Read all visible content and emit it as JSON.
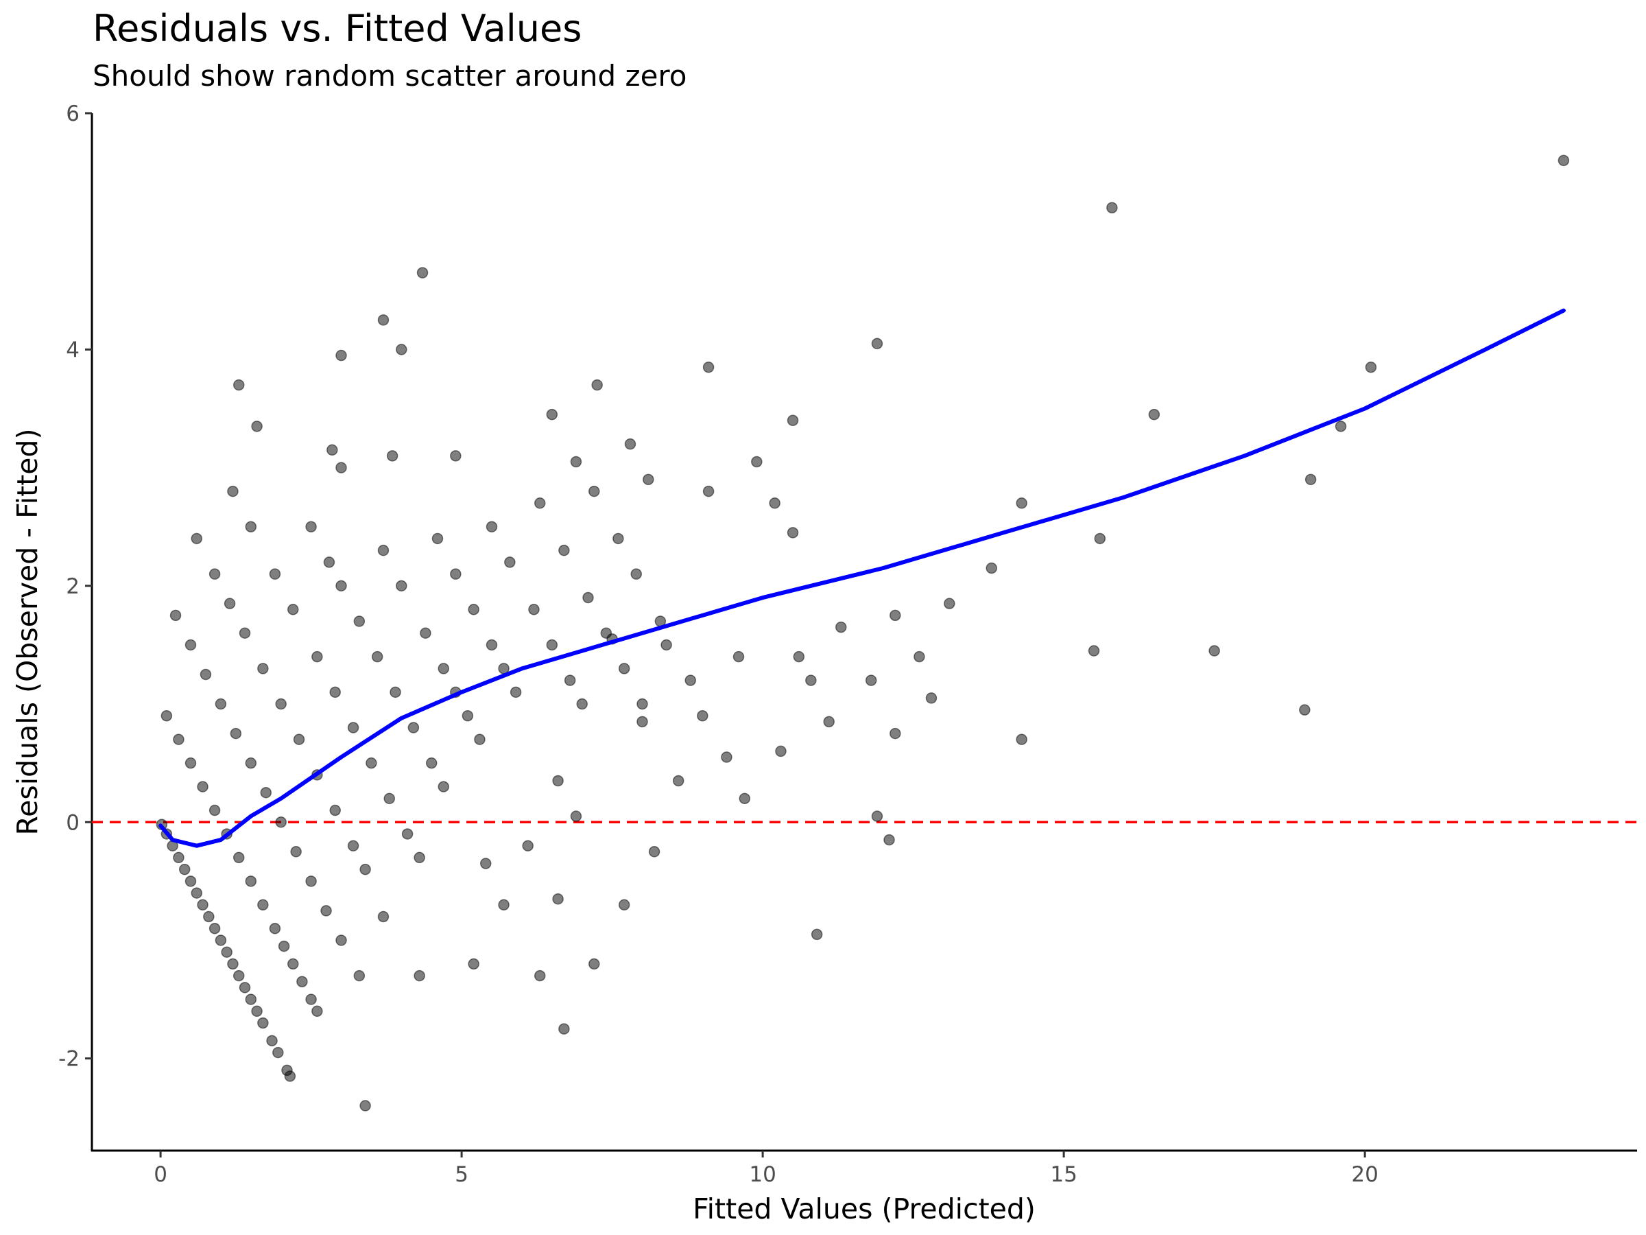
{
  "chart_data": {
    "type": "scatter",
    "title": "Residuals vs. Fitted Values",
    "subtitle": "Should show random scatter around zero",
    "x_label": "Fitted Values (Predicted)",
    "y_label": "Residuals (Observed - Fitted)",
    "xlim": [
      -1.14,
      24.52
    ],
    "ylim": [
      -2.78,
      6
    ],
    "xticks": [
      0,
      5,
      10,
      15,
      20
    ],
    "yticks": [
      -2,
      0,
      2,
      4,
      6
    ],
    "grid": false,
    "hline": {
      "value": 0,
      "color": "#ff0000"
    },
    "series": [
      {
        "type": "scatter",
        "color": "#000000",
        "opacity": 0.5,
        "x": [
          0.02,
          0.1,
          0.2,
          0.3,
          0.4,
          0.5,
          0.6,
          0.7,
          0.8,
          0.9,
          1.0,
          1.1,
          1.2,
          1.3,
          1.4,
          1.5,
          1.6,
          1.7,
          1.85,
          1.95,
          2.1,
          2.15,
          0.1,
          0.3,
          0.5,
          0.7,
          0.9,
          1.1,
          1.3,
          1.5,
          1.7,
          1.9,
          2.05,
          2.2,
          2.35,
          2.5,
          2.6,
          0.25,
          0.5,
          0.75,
          1.0,
          1.25,
          1.5,
          1.75,
          2.0,
          2.25,
          2.5,
          2.75,
          3.0,
          3.3,
          0.6,
          0.9,
          1.15,
          1.4,
          1.7,
          2.0,
          2.3,
          2.6,
          2.9,
          3.2,
          3.4,
          1.2,
          1.5,
          1.9,
          2.2,
          2.6,
          2.9,
          3.2,
          3.5,
          3.8,
          4.1,
          4.3,
          2.5,
          2.8,
          3.0,
          3.3,
          3.6,
          3.9,
          4.2,
          4.5,
          4.7,
          3.7,
          4.0,
          4.4,
          4.7,
          4.9,
          5.1,
          5.3,
          4.6,
          4.9,
          5.2,
          5.5,
          5.7,
          5.9,
          5.5,
          5.8,
          6.2,
          6.5,
          6.8,
          7.0,
          6.3,
          6.7,
          7.1,
          7.4,
          7.7,
          8.0,
          7.2,
          7.6,
          7.9,
          8.3,
          8.8,
          1.3,
          1.6,
          3.0,
          3.7,
          4.0,
          4.35,
          2.85,
          3.0,
          3.85,
          4.9,
          6.5,
          7.25,
          9.1,
          10.5,
          11.9,
          15.8,
          23.3,
          20.1,
          16.5,
          19.6,
          19.1,
          14.3,
          15.6,
          13.8,
          13.1,
          12.2,
          11.3,
          15.5,
          17.5,
          19.0,
          14.3,
          12.2,
          12.8,
          11.8,
          12.6,
          10.2,
          10.5,
          9.9,
          9.1,
          8.1,
          7.8,
          6.9,
          8.0,
          8.6,
          9.4,
          10.3,
          9.7,
          11.1,
          11.9,
          12.1,
          10.9,
          7.7,
          6.6,
          5.7,
          5.2,
          4.3,
          3.4,
          6.3,
          6.7,
          7.2,
          3.7,
          5.4,
          6.1,
          8.2,
          6.9,
          6.6,
          9.0,
          9.6,
          10.6,
          10.8,
          8.4,
          7.5
        ],
        "values": [
          -0.02,
          -0.1,
          -0.2,
          -0.3,
          -0.4,
          -0.5,
          -0.6,
          -0.7,
          -0.8,
          -0.9,
          -1.0,
          -1.1,
          -1.2,
          -1.3,
          -1.4,
          -1.5,
          -1.6,
          -1.7,
          -1.85,
          -1.95,
          -2.1,
          -2.15,
          0.9,
          0.7,
          0.5,
          0.3,
          0.1,
          -0.1,
          -0.3,
          -0.5,
          -0.7,
          -0.9,
          -1.05,
          -1.2,
          -1.35,
          -1.5,
          -1.6,
          1.75,
          1.5,
          1.25,
          1.0,
          0.75,
          0.5,
          0.25,
          0,
          -0.25,
          -0.5,
          -0.75,
          -1.0,
          -1.3,
          2.4,
          2.1,
          1.85,
          1.6,
          1.3,
          1.0,
          0.7,
          0.4,
          0.1,
          -0.2,
          -0.4,
          2.8,
          2.5,
          2.1,
          1.8,
          1.4,
          1.1,
          0.8,
          0.5,
          0.2,
          -0.1,
          -0.3,
          2.5,
          2.2,
          2.0,
          1.7,
          1.4,
          1.1,
          0.8,
          0.5,
          0.3,
          2.3,
          2.0,
          1.6,
          1.3,
          1.1,
          0.9,
          0.7,
          2.4,
          2.1,
          1.8,
          1.5,
          1.3,
          1.1,
          2.5,
          2.2,
          1.8,
          1.5,
          1.2,
          1.0,
          2.7,
          2.3,
          1.9,
          1.6,
          1.3,
          1.0,
          2.8,
          2.4,
          2.1,
          1.7,
          1.2,
          3.7,
          3.35,
          3.95,
          4.25,
          4.0,
          4.65,
          3.15,
          3.0,
          3.1,
          3.1,
          3.45,
          3.7,
          3.85,
          3.4,
          4.05,
          5.2,
          5.6,
          3.85,
          3.45,
          3.35,
          2.9,
          2.7,
          2.4,
          2.15,
          1.85,
          1.75,
          1.65,
          1.45,
          1.45,
          0.95,
          0.7,
          0.75,
          1.05,
          1.2,
          1.4,
          2.7,
          2.45,
          3.05,
          2.8,
          2.9,
          3.2,
          3.05,
          0.85,
          0.35,
          0.55,
          0.6,
          0.2,
          0.85,
          0.05,
          -0.15,
          -0.95,
          -0.7,
          -0.65,
          -0.7,
          -1.2,
          -1.3,
          -2.4,
          -1.3,
          -1.75,
          -1.2,
          -0.8,
          -0.35,
          -0.2,
          -0.25,
          0.05,
          0.35,
          0.9,
          1.4,
          1.4,
          1.2,
          1.5,
          1.55
        ]
      },
      {
        "type": "line",
        "color": "#0000ff",
        "x": [
          0,
          0.2,
          0.6,
          1,
          1.5,
          2,
          3,
          4,
          5,
          6,
          7,
          8,
          10,
          12,
          14,
          16,
          18,
          20,
          22,
          23.3
        ],
        "values": [
          -0.03,
          -0.15,
          -0.2,
          -0.15,
          0.05,
          0.2,
          0.55,
          0.88,
          1.1,
          1.3,
          1.45,
          1.6,
          1.9,
          2.15,
          2.45,
          2.75,
          3.1,
          3.5,
          4.0,
          4.33
        ]
      }
    ]
  }
}
